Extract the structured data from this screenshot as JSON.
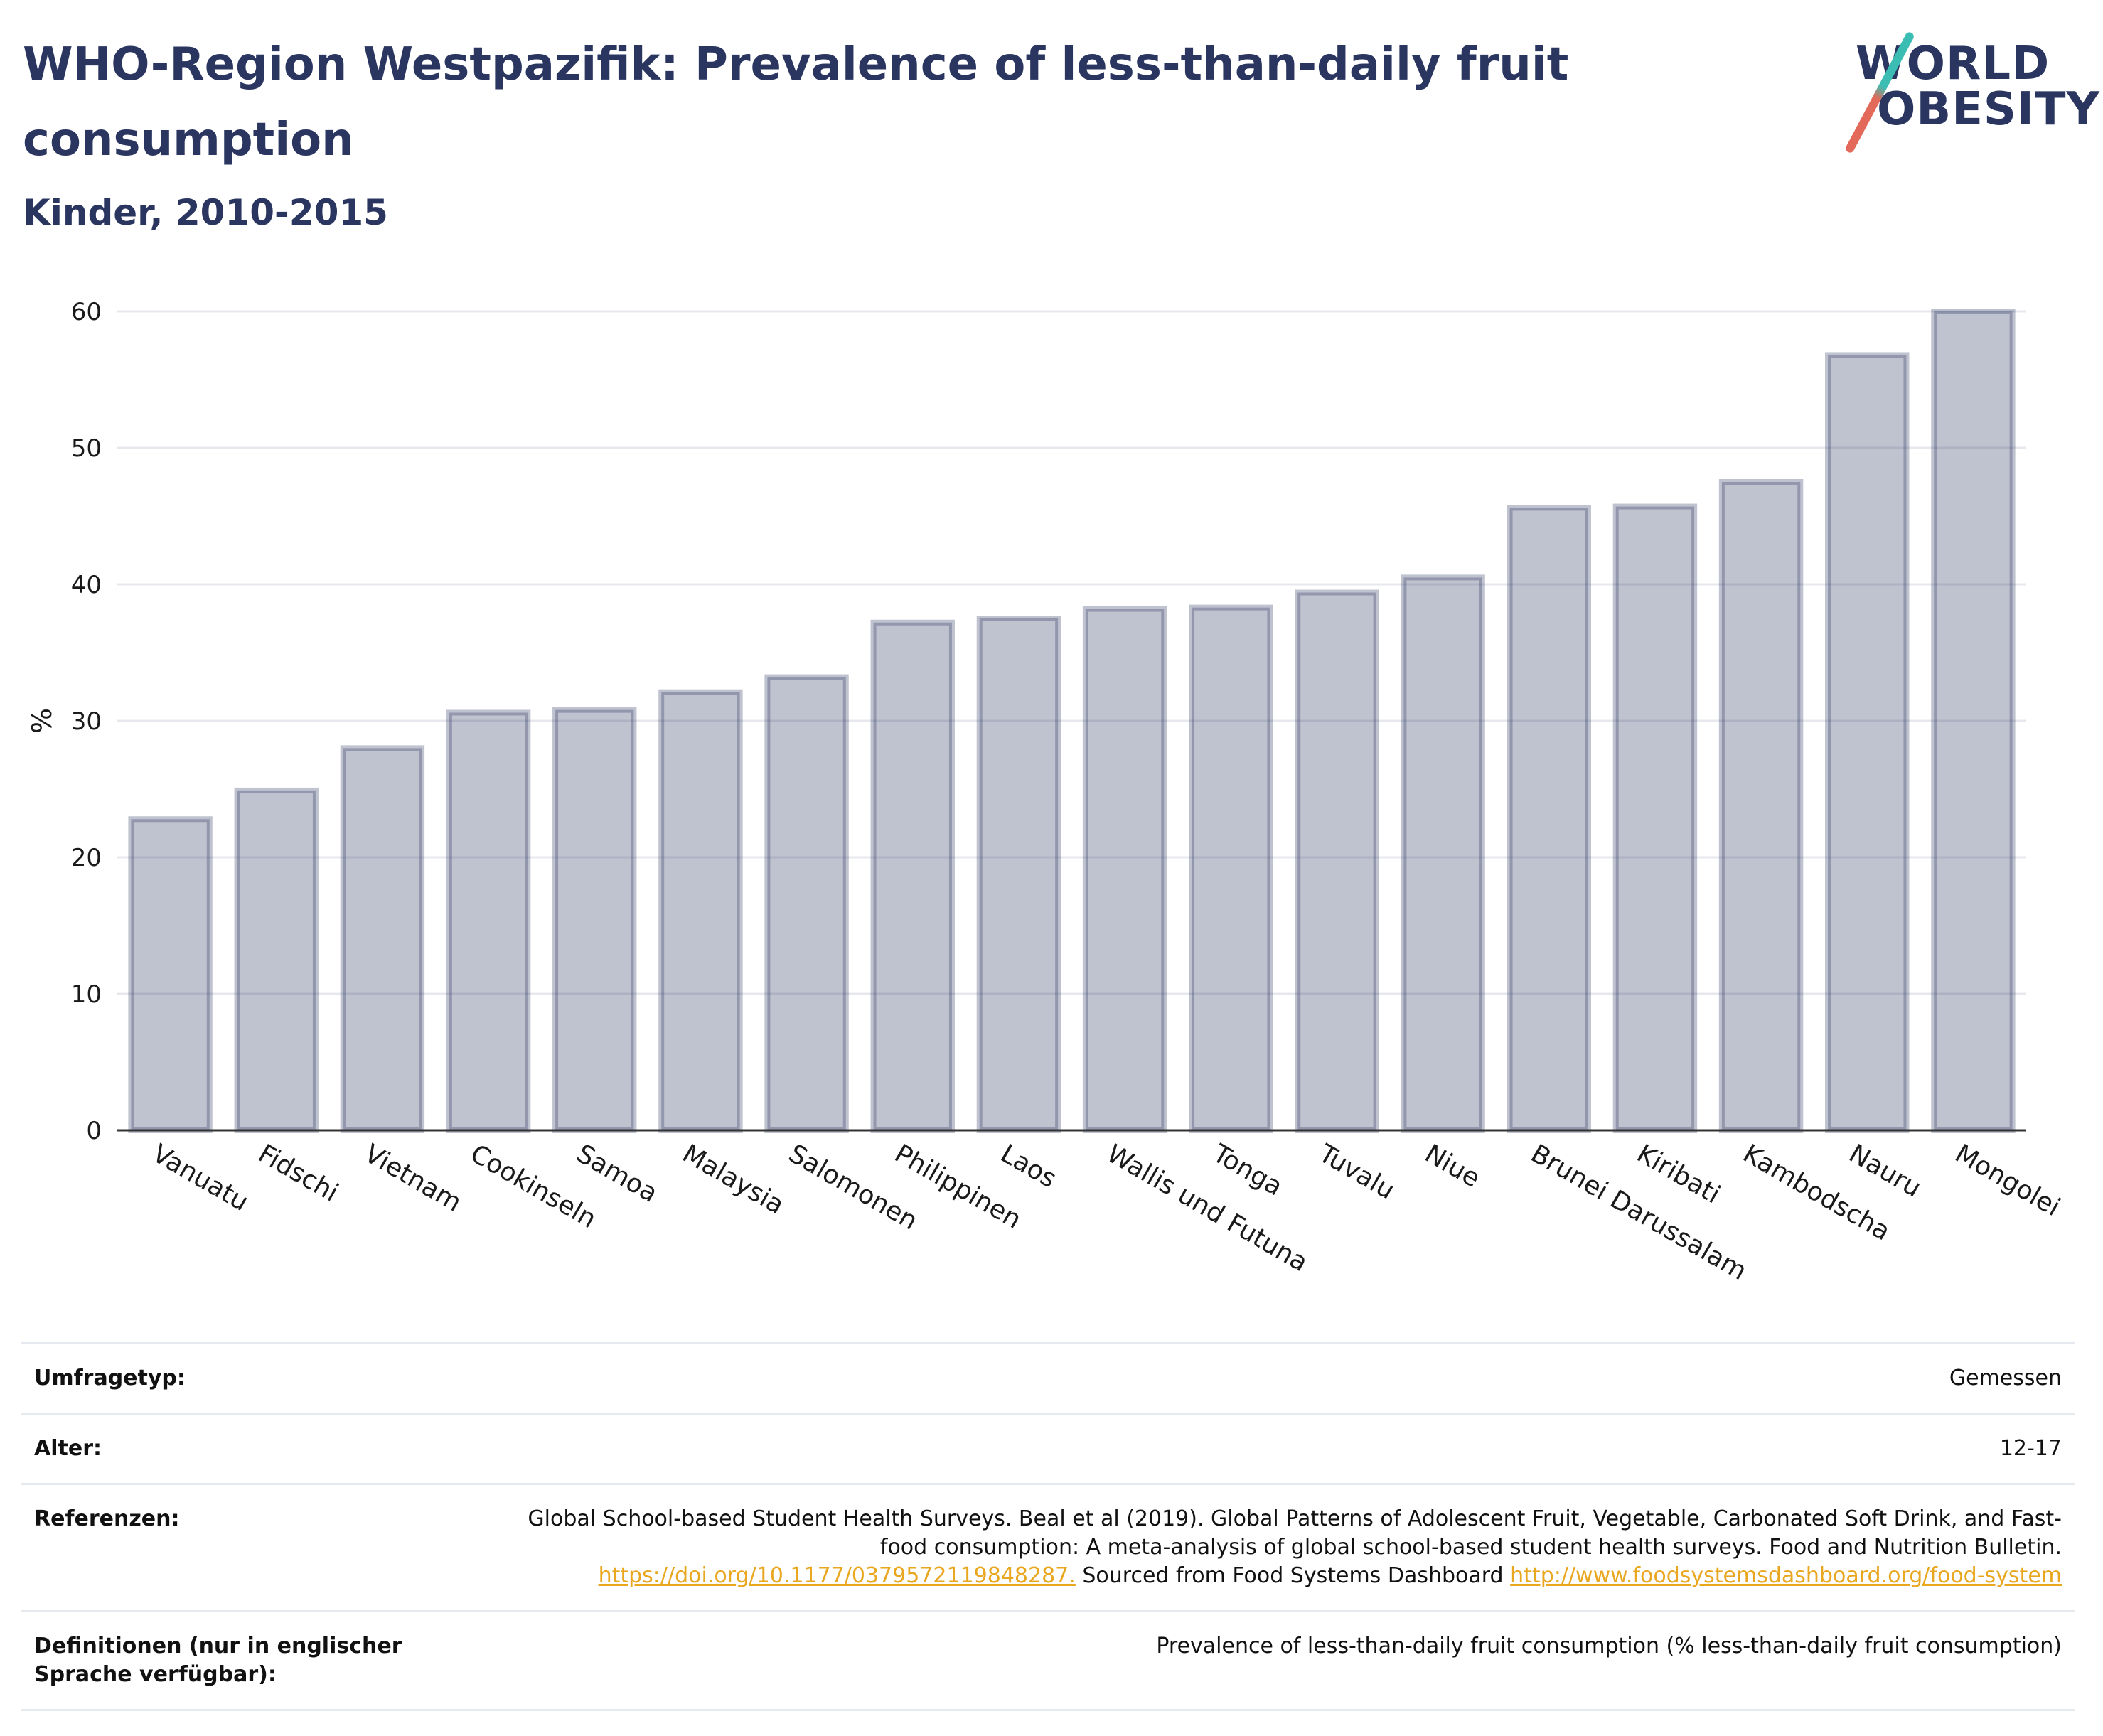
{
  "header": {
    "title": "WHO-Region Westpazifik: Prevalence of less-than-daily fruit consumption",
    "subtitle": "Kinder, 2010-2015",
    "logo_line1": "WORLD",
    "logo_line2": "OBESITY"
  },
  "chart_data": {
    "type": "bar",
    "title": "WHO-Region Westpazifik: Prevalence of less-than-daily fruit consumption",
    "subtitle": "Kinder, 2010-2015",
    "xlabel": "",
    "ylabel": "%",
    "ylim": [
      0,
      60
    ],
    "yticks": [
      0,
      10,
      20,
      30,
      40,
      50,
      60
    ],
    "grid": true,
    "bar_color": "#2a3560",
    "categories": [
      "Vanuatu",
      "Fidschi",
      "Vietnam",
      "Cookinseln",
      "Samoa",
      "Malaysia",
      "Salomonen",
      "Philippinen",
      "Laos",
      "Wallis und Futuna",
      "Tonga",
      "Tuvalu",
      "Niue",
      "Brunei Darussalam",
      "Kiribati",
      "Kambodscha",
      "Nauru",
      "Mongolei"
    ],
    "values": [
      22.8,
      24.9,
      28.0,
      30.6,
      30.8,
      32.1,
      33.2,
      37.2,
      37.5,
      38.2,
      38.3,
      39.4,
      40.5,
      45.6,
      45.7,
      47.5,
      56.8,
      60.0
    ]
  },
  "metadata": {
    "rows": [
      {
        "label": "Umfragetyp:",
        "value": "Gemessen"
      },
      {
        "label": "Alter:",
        "value": "12-17"
      },
      {
        "label": "Referenzen:",
        "value_text1": "Global School-based Student Health Surveys. Beal et al (2019). Global Patterns of Adolescent Fruit, Vegetable, Carbonated Soft Drink, and Fast-food consumption: A meta-analysis of global school-based student health surveys. Food and Nutrition Bulletin.",
        "link1": "https://doi.org/10.1177/0379572119848287.",
        "value_text2": "Sourced from Food Systems Dashboard",
        "link2": "http://www.foodsystemsdashboard.org/food-system"
      },
      {
        "label": "Definitionen (nur in englischer Sprache verfügbar):",
        "value": "Prevalence of less-than-daily fruit consumption (% less-than-daily fruit consumption)"
      }
    ]
  }
}
